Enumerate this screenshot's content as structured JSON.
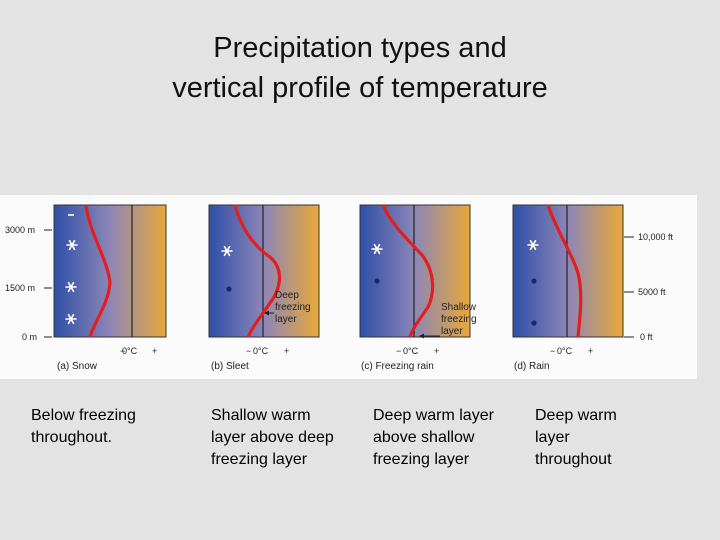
{
  "title": {
    "line1": "Precipitation types and",
    "line2": "vertical profile of temperature"
  },
  "figure": {
    "left_axis": {
      "labels": [
        "3000 m",
        "1500 m",
        "0 m"
      ]
    },
    "right_axis": {
      "labels": [
        "10,000 ft",
        "5000 ft",
        "0 ft"
      ]
    },
    "panels": [
      {
        "id": "a",
        "label": "(a) Snow",
        "axis": {
          "minus": "−",
          "zero": "0°C",
          "plus": "+"
        },
        "symbols": [
          "snowflake",
          "snowflake",
          "snowflake",
          "snowflake"
        ],
        "annotation": []
      },
      {
        "id": "b",
        "label": "(b) Sleet",
        "axis": {
          "minus": "−",
          "zero": "0°C",
          "plus": "+"
        },
        "symbols": [
          "snowflake",
          "sleet-pellet"
        ],
        "annotation": [
          "Deep",
          "freezing",
          "layer"
        ]
      },
      {
        "id": "c",
        "label": "(c) Freezing rain",
        "axis": {
          "minus": "−",
          "zero": "0°C",
          "plus": "+"
        },
        "symbols": [
          "snowflake",
          "raindrop"
        ],
        "annotation": [
          "Shallow",
          "freezing",
          "layer"
        ]
      },
      {
        "id": "d",
        "label": "(d) Rain",
        "axis": {
          "minus": "−",
          "zero": "0°C",
          "plus": "+"
        },
        "symbols": [
          "snowflake",
          "raindrop",
          "raindrop"
        ],
        "annotation": []
      }
    ]
  },
  "captions": [
    "Below freezing throughout.",
    "Shallow warm layer above deep freezing layer",
    "Deep warm layer above shallow freezing layer",
    "Deep warm layer throughout"
  ],
  "colors": {
    "cold": "#2f4fa8",
    "warm": "#e8a838",
    "profile": "#e21f1f",
    "snowflake": "#ffffff",
    "drop": "#142a70"
  }
}
